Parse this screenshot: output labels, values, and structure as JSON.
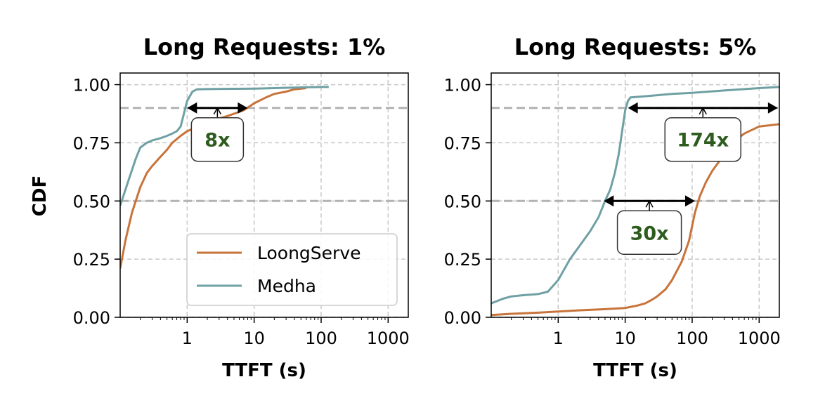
{
  "colors": {
    "loongserve": "#c8733a",
    "medha": "#6fa0a3",
    "annotation_text": "#2e5c1e",
    "grid": "#c8c8c8",
    "reference_line": "#b3b3b3"
  },
  "figure": {
    "shared_ylabel": "CDF"
  },
  "chart_data": [
    {
      "type": "line",
      "title": "Long Requests: 1%",
      "xlabel": "TTFT (s)",
      "ylabel": "CDF",
      "xscale": "log",
      "xlim": [
        0.1,
        2000
      ],
      "ylim": [
        0,
        1.05
      ],
      "xticks": [
        1,
        10,
        100,
        1000
      ],
      "xtick_labels": [
        "1",
        "10",
        "100",
        "1000"
      ],
      "yticks": [
        0,
        0.25,
        0.5,
        0.75,
        1.0
      ],
      "ytick_labels": [
        "0.00",
        "0.25",
        "0.50",
        "0.75",
        "1.00"
      ],
      "grid": true,
      "reference_lines": [
        0.5,
        0.9
      ],
      "legend": {
        "placement": "lower-right",
        "entries": [
          "LoongServe",
          "Medha"
        ]
      },
      "series": [
        {
          "name": "LoongServe",
          "color_key": "loongserve",
          "x": [
            0.1,
            0.12,
            0.15,
            0.2,
            0.25,
            0.3,
            0.4,
            0.5,
            0.6,
            0.8,
            1.0,
            1.5,
            2,
            3,
            4,
            5,
            7,
            10,
            15,
            20,
            30,
            40,
            60
          ],
          "y": [
            0.21,
            0.33,
            0.45,
            0.56,
            0.62,
            0.65,
            0.69,
            0.72,
            0.75,
            0.78,
            0.8,
            0.82,
            0.84,
            0.855,
            0.865,
            0.875,
            0.89,
            0.92,
            0.945,
            0.96,
            0.97,
            0.98,
            0.985
          ]
        },
        {
          "name": "Medha",
          "color_key": "medha",
          "x": [
            0.1,
            0.13,
            0.17,
            0.2,
            0.25,
            0.3,
            0.4,
            0.5,
            0.6,
            0.7,
            0.8,
            1.0,
            1.2,
            1.4,
            2,
            5,
            10,
            20,
            50,
            100,
            130
          ],
          "y": [
            0.48,
            0.58,
            0.68,
            0.73,
            0.75,
            0.76,
            0.77,
            0.78,
            0.79,
            0.8,
            0.82,
            0.93,
            0.97,
            0.98,
            0.981,
            0.982,
            0.983,
            0.985,
            0.988,
            0.99,
            0.99
          ]
        }
      ],
      "annotations": [
        {
          "label": "8x",
          "x_from": 1.0,
          "x_to": 8.0,
          "y": 0.9
        }
      ]
    },
    {
      "type": "line",
      "title": "Long Requests: 5%",
      "xlabel": "TTFT (s)",
      "ylabel": "",
      "xscale": "log",
      "xlim": [
        0.1,
        2000
      ],
      "ylim": [
        0,
        1.05
      ],
      "xticks": [
        1,
        10,
        100,
        1000
      ],
      "xtick_labels": [
        "1",
        "10",
        "100",
        "1000"
      ],
      "yticks": [
        0,
        0.25,
        0.5,
        0.75,
        1.0
      ],
      "ytick_labels": [
        "0.00",
        "0.25",
        "0.50",
        "0.75",
        "1.00"
      ],
      "grid": true,
      "reference_lines": [
        0.5,
        0.9
      ],
      "legend": null,
      "series": [
        {
          "name": "LoongServe",
          "color_key": "loongserve",
          "x": [
            0.1,
            0.2,
            0.5,
            1,
            2,
            5,
            10,
            15,
            20,
            25,
            30,
            40,
            50,
            70,
            90,
            110,
            130,
            160,
            200,
            300,
            400,
            600,
            1000,
            2000
          ],
          "y": [
            0.01,
            0.015,
            0.02,
            0.025,
            0.03,
            0.035,
            0.04,
            0.05,
            0.06,
            0.075,
            0.09,
            0.12,
            0.16,
            0.24,
            0.33,
            0.45,
            0.52,
            0.58,
            0.63,
            0.7,
            0.75,
            0.79,
            0.82,
            0.83
          ]
        },
        {
          "name": "Medha",
          "color_key": "medha",
          "x": [
            0.1,
            0.15,
            0.2,
            0.3,
            0.5,
            0.7,
            1.0,
            1.5,
            2,
            3,
            4,
            5,
            6,
            7,
            8,
            9,
            10,
            11,
            12,
            20,
            50,
            100,
            300,
            1000,
            2000
          ],
          "y": [
            0.06,
            0.08,
            0.09,
            0.095,
            0.1,
            0.11,
            0.16,
            0.25,
            0.3,
            0.37,
            0.43,
            0.5,
            0.55,
            0.62,
            0.7,
            0.8,
            0.89,
            0.93,
            0.945,
            0.95,
            0.96,
            0.965,
            0.975,
            0.985,
            0.99
          ]
        }
      ],
      "annotations": [
        {
          "label": "30x",
          "x_from": 4.8,
          "x_to": 110,
          "y": 0.5
        },
        {
          "label": "174x",
          "x_from": 11,
          "x_to": 1900,
          "y": 0.9
        }
      ]
    }
  ]
}
